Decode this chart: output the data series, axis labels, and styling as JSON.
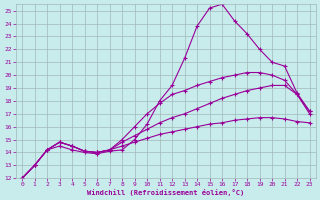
{
  "xlabel": "Windchill (Refroidissement éolien,°C)",
  "bg_color": "#c8ecec",
  "line_color": "#990099",
  "grid_color": "#9fb8b8",
  "xlim": [
    -0.5,
    23.5
  ],
  "ylim": [
    12,
    25.5
  ],
  "x_ticks": [
    0,
    1,
    2,
    3,
    4,
    5,
    6,
    7,
    8,
    9,
    10,
    11,
    12,
    13,
    14,
    15,
    16,
    17,
    18,
    19,
    20,
    21,
    22,
    23
  ],
  "y_ticks": [
    12,
    13,
    14,
    15,
    16,
    17,
    18,
    19,
    20,
    21,
    22,
    23,
    24,
    25
  ],
  "series": [
    {
      "x": [
        0,
        1,
        2,
        3,
        4,
        5,
        6,
        7,
        8,
        9,
        10,
        11,
        12,
        13,
        14,
        15,
        16,
        17,
        18,
        19,
        20,
        21,
        22,
        23
      ],
      "y": [
        12,
        13,
        14.2,
        14.5,
        14.2,
        14.0,
        13.9,
        14.1,
        14.2,
        15.0,
        16.2,
        18.0,
        19.2,
        21.3,
        23.8,
        25.2,
        25.5,
        24.2,
        23.2,
        22.0,
        21.0,
        20.7,
        18.6,
        17.2
      ]
    },
    {
      "x": [
        0,
        1,
        2,
        3,
        4,
        5,
        6,
        7,
        8,
        9,
        10,
        11,
        12,
        13,
        14,
        15,
        16,
        17,
        18,
        19,
        20,
        21,
        22,
        23
      ],
      "y": [
        12,
        13,
        14.2,
        14.8,
        14.5,
        14.1,
        14.0,
        14.2,
        15.0,
        16.0,
        17.0,
        17.8,
        18.5,
        18.8,
        19.2,
        19.5,
        19.8,
        20.0,
        20.2,
        20.2,
        20.0,
        19.6,
        18.5,
        17.2
      ]
    },
    {
      "x": [
        0,
        1,
        2,
        3,
        4,
        5,
        6,
        7,
        8,
        9,
        10,
        11,
        12,
        13,
        14,
        15,
        16,
        17,
        18,
        19,
        20,
        21,
        22,
        23
      ],
      "y": [
        12,
        13,
        14.2,
        14.8,
        14.5,
        14.1,
        14.0,
        14.2,
        14.8,
        15.3,
        15.8,
        16.3,
        16.7,
        17.0,
        17.4,
        17.8,
        18.2,
        18.5,
        18.8,
        19.0,
        19.2,
        19.2,
        18.5,
        17.0
      ]
    },
    {
      "x": [
        0,
        1,
        2,
        3,
        4,
        5,
        6,
        7,
        8,
        9,
        10,
        11,
        12,
        13,
        14,
        15,
        16,
        17,
        18,
        19,
        20,
        21,
        22,
        23
      ],
      "y": [
        12,
        13,
        14.2,
        14.8,
        14.5,
        14.1,
        14.0,
        14.2,
        14.5,
        14.8,
        15.1,
        15.4,
        15.6,
        15.8,
        16.0,
        16.2,
        16.3,
        16.5,
        16.6,
        16.7,
        16.7,
        16.6,
        16.4,
        16.3
      ]
    }
  ]
}
